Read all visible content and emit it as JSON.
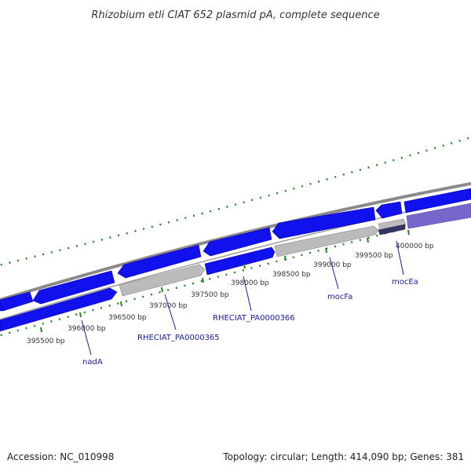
{
  "title": "Rhizobium etli CIAT 652 plasmid pA, complete sequence",
  "footer": {
    "accession": "Accession: NC_010998",
    "topology": "Topology: circular; Length: 414,090 bp; Genes: 381"
  },
  "ticks": [
    {
      "label": "395500 bp"
    },
    {
      "label": "396000 bp"
    },
    {
      "label": "396500 bp"
    },
    {
      "label": "397000 bp"
    },
    {
      "label": "397500 bp"
    },
    {
      "label": "398000 bp"
    },
    {
      "label": "398500 bp"
    },
    {
      "label": "399000 bp"
    },
    {
      "label": "399500 bp"
    },
    {
      "label": "400000 bp"
    }
  ],
  "gene_labels": [
    {
      "text": "nadA"
    },
    {
      "text": "RHECIAT_PA0000365"
    },
    {
      "text": "RHECIAT_PA0000366"
    },
    {
      "text": "mocFa"
    },
    {
      "text": "mocEa"
    }
  ],
  "colors": {
    "gene_blue": "#1111ee",
    "gene_gray": "#bbbbbb",
    "gene_purple": "#7766cc",
    "backbone": "#888888",
    "gc_dots": "#228822",
    "label_blue": "#1a1aa6"
  }
}
